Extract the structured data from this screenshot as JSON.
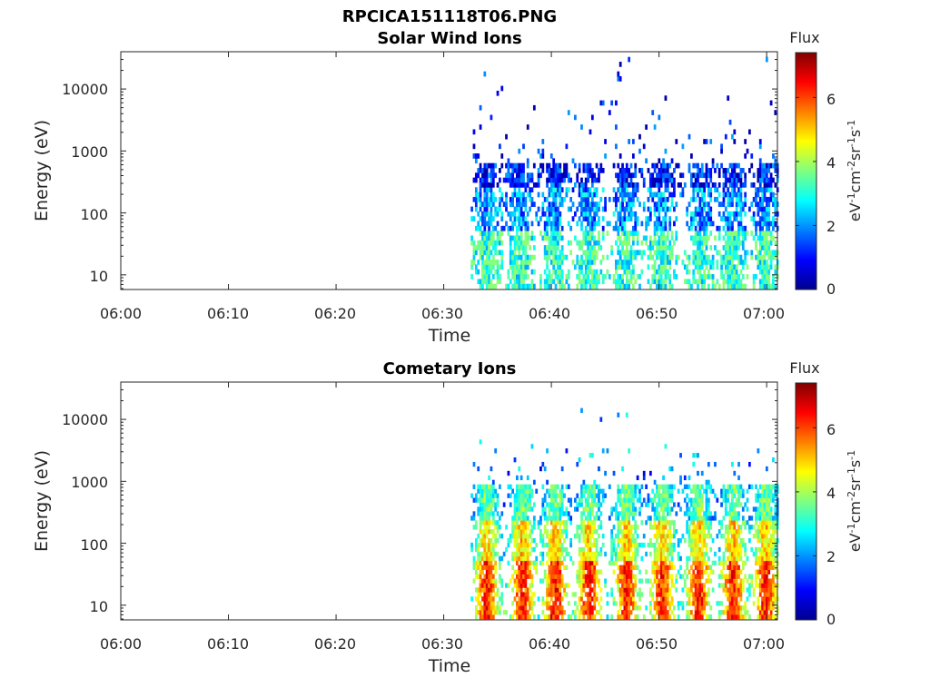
{
  "figure": {
    "title": "RPCICA151118T06.PNG"
  },
  "colorbar": {
    "title": "Flux",
    "unit_main": "eV",
    "unit_exp1": "-1",
    "unit_mid": "cm",
    "unit_exp2": "-2",
    "unit_sr": "sr",
    "unit_exp3": "-1",
    "unit_s": "s",
    "unit_exp4": "-1",
    "ticks": [
      "0",
      "2",
      "4",
      "6"
    ],
    "range": [
      0,
      7.4
    ],
    "colormap": "jet"
  },
  "chart_data": [
    {
      "type": "heatmap",
      "title": "Solar Wind Ions",
      "xlabel": "Time",
      "ylabel": "Energy (eV)",
      "x_ticks": [
        "06:00",
        "06:10",
        "06:20",
        "06:30",
        "06:40",
        "06:50",
        "07:00"
      ],
      "y_ticks": [
        "10",
        "100",
        "1000",
        "10000"
      ],
      "x_range_minutes": [
        0,
        61
      ],
      "y_scale": "log",
      "y_range": [
        5.8,
        40000
      ],
      "data_start_minute": 32.5,
      "bursts_minute": [
        33.9,
        36.9,
        40.1,
        43.4,
        46.8,
        50.1,
        53.8,
        56.8,
        59.8
      ],
      "flux_typical": [
        0.5,
        3.8
      ],
      "energy_range_eV": [
        6,
        33000
      ]
    },
    {
      "type": "heatmap",
      "title": "Cometary Ions",
      "xlabel": "Time",
      "ylabel": "Energy (eV)",
      "x_ticks": [
        "06:00",
        "06:10",
        "06:20",
        "06:30",
        "06:40",
        "06:50",
        "07:00"
      ],
      "y_ticks": [
        "10",
        "100",
        "1000",
        "10000"
      ],
      "x_range_minutes": [
        0,
        61
      ],
      "y_scale": "log",
      "y_range": [
        5.8,
        40000
      ],
      "data_start_minute": 32.5,
      "bursts_minute": [
        33.9,
        37.2,
        40.3,
        43.4,
        46.9,
        50.2,
        53.6,
        56.8,
        59.8
      ],
      "flux_typical": [
        2.0,
        7.2
      ],
      "energy_range_eV": [
        6,
        18000
      ]
    }
  ]
}
